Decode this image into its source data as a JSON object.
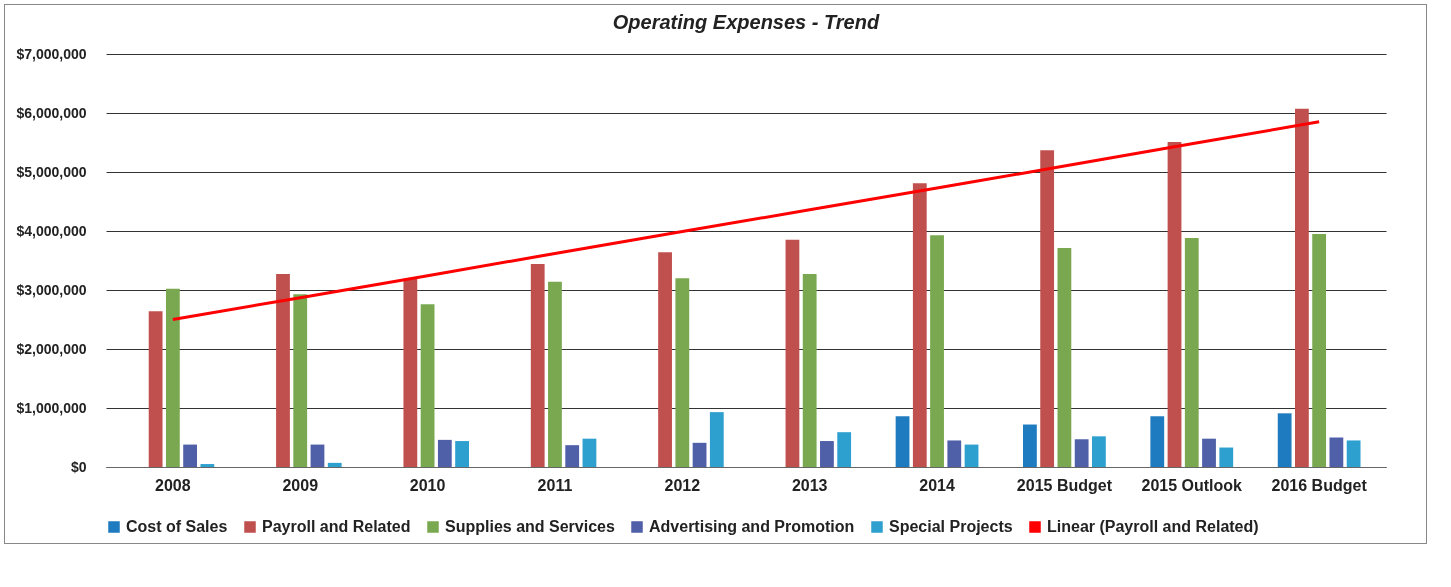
{
  "chart_data": {
    "type": "bar",
    "title": "Operating Expenses - Trend",
    "categories": [
      "2008",
      "2009",
      "2010",
      "2011",
      "2012",
      "2013",
      "2014",
      "2015 Budget",
      "2015 Outlook",
      "2016 Budget"
    ],
    "series": [
      {
        "name": "Cost of Sales",
        "color": "#1f7bbf",
        "values": [
          null,
          null,
          null,
          null,
          null,
          null,
          860000,
          720000,
          860000,
          910000
        ]
      },
      {
        "name": "Payroll and Related",
        "color": "#c0504d",
        "values": [
          2640000,
          3270000,
          3190000,
          3440000,
          3640000,
          3850000,
          4810000,
          5370000,
          5510000,
          6070000
        ]
      },
      {
        "name": "Supplies and Services",
        "color": "#79a850",
        "values": [
          3020000,
          2930000,
          2760000,
          3140000,
          3200000,
          3270000,
          3930000,
          3710000,
          3880000,
          3950000
        ]
      },
      {
        "name": "Advertising and Promotion",
        "color": "#4f5fa8",
        "values": [
          380000,
          380000,
          460000,
          370000,
          410000,
          440000,
          450000,
          470000,
          480000,
          500000
        ]
      },
      {
        "name": "Special Projects",
        "color": "#2ea0d0",
        "values": [
          50000,
          70000,
          440000,
          480000,
          930000,
          590000,
          380000,
          520000,
          330000,
          450000
        ]
      },
      {
        "name": "Linear (Payroll and Related)",
        "color": "#ff0000",
        "type": "line",
        "values": [
          2500000,
          2870000,
          3240000,
          3620000,
          3990000,
          4360000,
          4730000,
          5100000,
          5480000,
          5850000
        ]
      }
    ],
    "ylim": [
      0,
      7000000
    ],
    "yticks": [
      {
        "value": 0,
        "label": "$0"
      },
      {
        "value": 1000000,
        "label": "$1,000,000"
      },
      {
        "value": 2000000,
        "label": "$2,000,000"
      },
      {
        "value": 3000000,
        "label": "$3,000,000"
      },
      {
        "value": 4000000,
        "label": "$4,000,000"
      },
      {
        "value": 5000000,
        "label": "$5,000,000"
      },
      {
        "value": 6000000,
        "label": "$6,000,000"
      },
      {
        "value": 7000000,
        "label": "$7,000,000"
      }
    ],
    "grid": "y",
    "legend": "bottom"
  }
}
